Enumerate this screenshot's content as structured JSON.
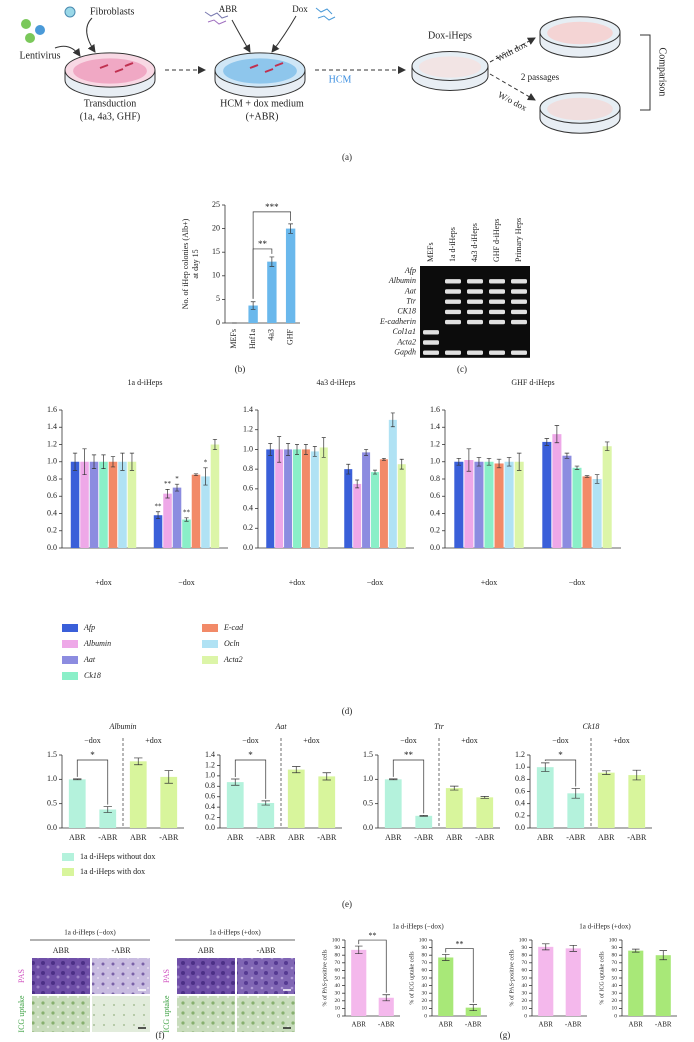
{
  "panel_labels": [
    "(a)",
    "(b)",
    "(c)",
    "(d)",
    "(e)",
    "(f)",
    "(g)"
  ],
  "diagram": {
    "fibroblasts": "Fibroblasts",
    "lentivirus": "Lentivirus",
    "step1": "Transduction",
    "step1_note": "(1a, 4a3, GHF)",
    "abr": "ABR",
    "dox": "Dox",
    "hcm": "HCM",
    "step2": "HCM + dox medium",
    "step2_note": "(+ABR)",
    "product": "Dox-iHeps",
    "with_dox": "With dox",
    "passages": "2 passages",
    "without_dox": "W/o dox",
    "comparison": "Comparison"
  },
  "gel": {
    "lanes": [
      "MEFs",
      "1a d-iHeps",
      "4a3 d-iHeps",
      "GHF d-iHeps",
      "Primary Heps"
    ],
    "genes": [
      "Afp",
      "Albumin",
      "Aat",
      "Ttr",
      "CK18",
      "E-cadherin",
      "Col1a1",
      "Acta2",
      "Gapdh"
    ],
    "bands": [
      [
        0,
        0,
        0,
        0,
        0
      ],
      [
        0,
        1,
        1,
        1,
        1
      ],
      [
        0,
        1,
        1,
        1,
        1
      ],
      [
        0,
        1,
        1,
        1,
        1
      ],
      [
        0,
        1,
        1,
        1,
        1
      ],
      [
        0,
        1,
        1,
        1,
        1
      ],
      [
        1,
        0,
        0,
        0,
        0
      ],
      [
        1,
        0,
        0,
        0,
        0
      ],
      [
        1,
        1,
        1,
        1,
        1
      ]
    ]
  },
  "micrographs": {
    "groups": [
      "1a d-iHeps (−dox)",
      "1a d-iHeps (+dox)"
    ],
    "columns": [
      "ABR",
      "-ABR"
    ],
    "rows": [
      "PAS",
      "ICG uptake"
    ]
  },
  "chart_data": [
    {
      "type": "bar",
      "ylabel": [
        "No. of iHep colonies (Alb+)",
        "at day 15"
      ],
      "categories": [
        "MEFs",
        "Hnf1a",
        "4a3",
        "GHF"
      ],
      "values": [
        0,
        3.7,
        13,
        20
      ],
      "errors": [
        0,
        0.8,
        1,
        1
      ],
      "color": "#6ab8ec",
      "ylim": [
        0,
        25
      ],
      "yticks": [
        0,
        5,
        10,
        15,
        20,
        25
      ],
      "brackets": [
        {
          "pair": [
            1,
            2
          ],
          "label": "**"
        },
        {
          "pair": [
            1,
            3
          ],
          "label": "***"
        }
      ]
    },
    {
      "type": "grouped_bar",
      "categories": [
        "+dox",
        "−dox"
      ],
      "series": [
        {
          "name": "Afp",
          "color": "#3a5fd9"
        },
        {
          "name": "Albumin",
          "color": "#eea8e8"
        },
        {
          "name": "Aat",
          "color": "#8c8ce0"
        },
        {
          "name": "Ck18",
          "color": "#8aefc8"
        },
        {
          "name": "E-cad",
          "color": "#f28a68"
        },
        {
          "name": "Ocln",
          "color": "#b0e2f4"
        },
        {
          "name": "Acta2",
          "color": "#dcf5a8"
        }
      ],
      "charts": [
        {
          "title": "1a d-iHeps",
          "ylim": [
            0,
            1.6
          ],
          "yticks": [
            {
              "value": 0,
              "label": "0.0"
            },
            0.2,
            0.4,
            0.6,
            0.8,
            {
              "value": 1,
              "label": "1.0"
            },
            1.2,
            1.4,
            1.6
          ],
          "values": [
            [
              1.0,
              0.38
            ],
            [
              1.0,
              0.63
            ],
            [
              1.0,
              0.7
            ],
            [
              1.0,
              0.33
            ],
            [
              1.0,
              0.85
            ],
            [
              1.0,
              0.83
            ],
            [
              1.0,
              1.2
            ]
          ],
          "errors": [
            [
              0.1,
              0.04
            ],
            [
              0.15,
              0.05
            ],
            [
              0.08,
              0.04
            ],
            [
              0.08,
              0.02
            ],
            [
              0.06,
              0.01
            ],
            [
              0.1,
              0.1
            ],
            [
              0.1,
              0.06
            ]
          ],
          "sig": [
            [
              null,
              "**"
            ],
            [
              null,
              "**"
            ],
            [
              null,
              "*"
            ],
            [
              null,
              "**"
            ],
            [
              null,
              null
            ],
            [
              null,
              "*"
            ],
            [
              null,
              null
            ]
          ]
        },
        {
          "title": "4a3 d-iHeps",
          "ylim": [
            0,
            1.4
          ],
          "yticks": [
            {
              "value": 0,
              "label": "0.0"
            },
            0.2,
            0.4,
            0.6,
            0.8,
            {
              "value": 1,
              "label": "1.0"
            },
            1.2,
            1.4
          ],
          "values": [
            [
              1.0,
              0.8
            ],
            [
              1.0,
              0.65
            ],
            [
              1.0,
              0.97
            ],
            [
              1.0,
              0.77
            ],
            [
              1.0,
              0.9
            ],
            [
              0.98,
              1.3
            ],
            [
              1.02,
              0.85
            ]
          ],
          "errors": [
            [
              0.06,
              0.05
            ],
            [
              0.13,
              0.04
            ],
            [
              0.06,
              0.03
            ],
            [
              0.05,
              0.02
            ],
            [
              0.05,
              0.01
            ],
            [
              0.05,
              0.07
            ],
            [
              0.1,
              0.05
            ]
          ]
        },
        {
          "title": "GHF d-iHeps",
          "ylim": [
            0,
            1.6
          ],
          "yticks": [
            {
              "value": 0,
              "label": "0.0"
            },
            0.2,
            0.4,
            0.6,
            0.8,
            {
              "value": 1,
              "label": "1.0"
            },
            1.2,
            1.4,
            1.6
          ],
          "values": [
            [
              1.0,
              1.23
            ],
            [
              1.02,
              1.32
            ],
            [
              1.0,
              1.07
            ],
            [
              1.0,
              0.93
            ],
            [
              0.98,
              0.83
            ],
            [
              1.0,
              0.8
            ],
            [
              1.0,
              1.18
            ]
          ],
          "errors": [
            [
              0.04,
              0.04
            ],
            [
              0.13,
              0.1
            ],
            [
              0.05,
              0.03
            ],
            [
              0.04,
              0.02
            ],
            [
              0.05,
              0.01
            ],
            [
              0.05,
              0.05
            ],
            [
              0.1,
              0.05
            ]
          ]
        }
      ]
    },
    {
      "type": "paired_bar",
      "legend": [
        {
          "name": "1a d-iHeps without dox",
          "color": "#b4f2dc"
        },
        {
          "name": "1a d-iHeps with dox",
          "color": "#d8f59c"
        }
      ],
      "charts": [
        {
          "title": "Albumin",
          "groups": [
            "−dox",
            "+dox"
          ],
          "categories": [
            "ABR",
            "-ABR",
            "ABR",
            "-ABR"
          ],
          "values": [
            1.0,
            0.38,
            1.37,
            1.05
          ],
          "errors": [
            0.01,
            0.06,
            0.07,
            0.13
          ],
          "ylim": [
            0,
            1.5
          ],
          "yticks": [
            {
              "value": 0,
              "label": "0.0"
            },
            0.5,
            {
              "value": 1,
              "label": "1.0"
            },
            1.5
          ],
          "sig": "*"
        },
        {
          "title": "Aat",
          "groups": [
            "−dox",
            "+dox"
          ],
          "categories": [
            "ABR",
            "-ABR",
            "ABR",
            "-ABR"
          ],
          "values": [
            0.88,
            0.48,
            1.12,
            0.99
          ],
          "errors": [
            0.06,
            0.04,
            0.06,
            0.07
          ],
          "ylim": [
            0,
            1.4
          ],
          "yticks": [
            {
              "value": 0,
              "label": "0.0"
            },
            0.2,
            0.4,
            0.6,
            0.8,
            {
              "value": 1,
              "label": "1.0"
            },
            1.2,
            1.4
          ],
          "sig": "*"
        },
        {
          "title": "Ttr",
          "groups": [
            "−dox",
            "+dox"
          ],
          "categories": [
            "ABR",
            "-ABR",
            "ABR",
            "-ABR"
          ],
          "values": [
            1.0,
            0.25,
            0.82,
            0.63
          ],
          "errors": [
            0.01,
            0.01,
            0.04,
            0.02
          ],
          "ylim": [
            0,
            1.5
          ],
          "yticks": [
            {
              "value": 0,
              "label": "0.0"
            },
            0.5,
            {
              "value": 1,
              "label": "1.0"
            },
            1.5
          ],
          "sig": "**"
        },
        {
          "title": "Ck18",
          "groups": [
            "−dox",
            "+dox"
          ],
          "categories": [
            "ABR",
            "-ABR",
            "ABR",
            "-ABR"
          ],
          "values": [
            1.0,
            0.57,
            0.91,
            0.87
          ],
          "errors": [
            0.07,
            0.08,
            0.03,
            0.08
          ],
          "ylim": [
            0,
            1.2
          ],
          "yticks": [
            {
              "value": 0,
              "label": "0.0"
            },
            0.2,
            0.4,
            0.6,
            0.8,
            {
              "value": 1,
              "label": "1.0"
            },
            1.2
          ],
          "sig": "*"
        }
      ]
    },
    {
      "type": "simple_bar",
      "group_titles": [
        "1a d-iHeps (−dox)",
        "1a d-iHeps (+dox)"
      ],
      "charts": [
        {
          "ylabel": "% of PAS-positive cells",
          "categories": [
            "ABR",
            "-ABR"
          ],
          "values": [
            87,
            24
          ],
          "errors": [
            5,
            4
          ],
          "color": "#f4b8ec",
          "ylim": [
            0,
            100
          ],
          "yticks": [
            0,
            10,
            20,
            30,
            40,
            50,
            60,
            70,
            80,
            90,
            100
          ],
          "sig": "**"
        },
        {
          "ylabel": "% of ICG uptake cells",
          "categories": [
            "ABR",
            "-ABR"
          ],
          "values": [
            77,
            11
          ],
          "errors": [
            4,
            4
          ],
          "color": "#a8e878",
          "ylim": [
            0,
            100
          ],
          "yticks": [
            0,
            10,
            20,
            30,
            40,
            50,
            60,
            70,
            80,
            90,
            100
          ],
          "sig": "**"
        },
        {
          "ylabel": "% of PAS-positive cells",
          "categories": [
            "ABR",
            "-ABR"
          ],
          "values": [
            91,
            89
          ],
          "errors": [
            4,
            4
          ],
          "color": "#f4b8ec",
          "ylim": [
            0,
            100
          ],
          "yticks": [
            0,
            10,
            20,
            30,
            40,
            50,
            60,
            70,
            80,
            90,
            100
          ]
        },
        {
          "ylabel": "% of ICG uptake cells",
          "categories": [
            "ABR",
            "-ABR"
          ],
          "values": [
            86,
            80
          ],
          "errors": [
            2,
            6
          ],
          "color": "#a8e878",
          "ylim": [
            0,
            100
          ],
          "yticks": [
            0,
            10,
            20,
            30,
            40,
            50,
            60,
            70,
            80,
            90,
            100
          ]
        }
      ]
    }
  ]
}
